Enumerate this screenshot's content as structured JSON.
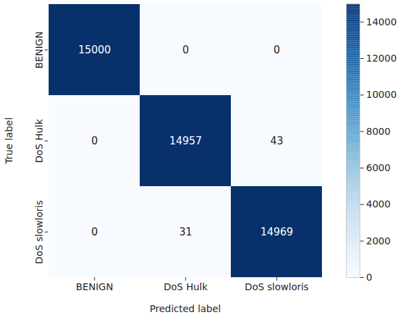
{
  "chart_data": {
    "type": "heatmap",
    "xlabel": "Predicted label",
    "ylabel": "True label",
    "x_categories": [
      "BENIGN",
      "DoS Hulk",
      "DoS slowloris"
    ],
    "y_categories": [
      "BENIGN",
      "DoS Hulk",
      "DoS slowloris"
    ],
    "cells": [
      [
        15000,
        0,
        0
      ],
      [
        0,
        14957,
        43
      ],
      [
        0,
        31,
        14969
      ]
    ],
    "color": "Blues",
    "colorbar_range": [
      0,
      15000
    ],
    "colorbar_ticks": [
      0,
      2000,
      4000,
      6000,
      8000,
      10000,
      12000,
      14000
    ],
    "data_labels": true
  }
}
